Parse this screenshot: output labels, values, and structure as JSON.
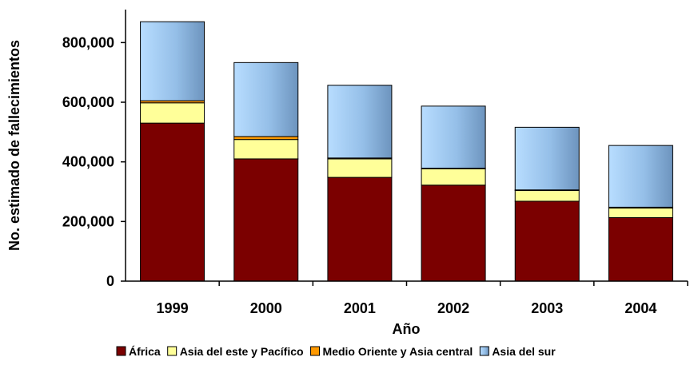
{
  "chart_data": {
    "type": "bar",
    "stacked": true,
    "title": "",
    "xlabel": "Año",
    "ylabel": "No. estimado de fallecimientos",
    "ylim": [
      0,
      900000
    ],
    "yticks": [
      0,
      200000,
      400000,
      600000,
      800000
    ],
    "ytick_labels": [
      "0",
      "200,000",
      "400,000",
      "600,000",
      "800,000"
    ],
    "categories": [
      "1999",
      "2000",
      "2001",
      "2002",
      "2003",
      "2004"
    ],
    "series": [
      {
        "name": "África",
        "color": "#7B0000",
        "values": [
          530000,
          410000,
          348000,
          322000,
          268000,
          213000
        ]
      },
      {
        "name": "Asia del este y Pacífico",
        "color": "#FFFF99",
        "values": [
          68000,
          65000,
          62000,
          55000,
          36000,
          32000
        ]
      },
      {
        "name": "Medio Oriente y Asia central",
        "color": "#FF9900",
        "values": [
          7000,
          10000,
          3000,
          2000,
          2000,
          3000
        ]
      },
      {
        "name": "Asia del sur",
        "color": "#99CCFF",
        "values": [
          265000,
          248000,
          244000,
          208000,
          210000,
          207000
        ]
      }
    ],
    "legend_position": "bottom",
    "grid": false
  }
}
